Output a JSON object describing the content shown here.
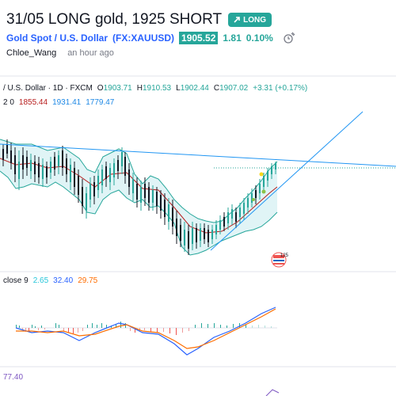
{
  "header": {
    "title": "31/05 LONG gold, 1925 SHORT",
    "badge": "LONG",
    "symbol": "Gold Spot / U.S. Dollar",
    "ticker": "(FX:XAUUSD)",
    "price": "1905.52",
    "change": "1.81",
    "change_pct": "0.10%",
    "user": "Chloe_Wang",
    "time": "an hour ago"
  },
  "legend": {
    "symbol_line": "/ U.S. Dollar · 1D · FXCM",
    "o_label": "O",
    "o": "1903.71",
    "h_label": "H",
    "h": "1910.53",
    "l_label": "L",
    "l": "1902.44",
    "c_label": "C",
    "c": "1907.02",
    "delta": "+3.31 (+0.17%)",
    "bb_prefix": "2 0",
    "bb1": "1855.44",
    "bb2": "1931.41",
    "bb3": "1779.47",
    "macd_prefix": "close 9",
    "macd1": "2.65",
    "macd2": "32.40",
    "macd3": "29.75",
    "rsi": "77.40"
  },
  "icon": "calendar-event-icon",
  "colors": {
    "accent": "#26a69a",
    "blue": "#2962ff",
    "line": "#2196f3"
  }
}
